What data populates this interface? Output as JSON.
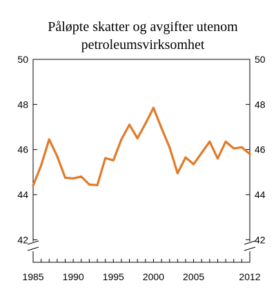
{
  "chart_data": {
    "type": "line",
    "title": "Påløpte skatter og avgifter utenom",
    "subtitle": "petroleumsvirksomhet",
    "xlabel": "",
    "ylabel": "",
    "xlim": [
      1985,
      2012
    ],
    "ylim": [
      41,
      50
    ],
    "y_ticks": [
      42,
      44,
      46,
      48,
      50
    ],
    "x_tick_labels": [
      "1985",
      "1990",
      "1995",
      "2000",
      "2005",
      "2012"
    ],
    "x_tick_values": [
      1985,
      1990,
      1995,
      2000,
      2005,
      2012
    ],
    "axis_break": true,
    "grid": false,
    "line_color": "#e07b2a",
    "series": [
      {
        "x": [
          1985,
          1986,
          1987,
          1988,
          1989,
          1990,
          1991,
          1992,
          1993,
          1994,
          1995,
          1996,
          1997,
          1998,
          1999,
          2000,
          2001,
          2002,
          2003,
          2004,
          2005,
          2006,
          2007,
          2008,
          2009,
          2010,
          2011,
          2012
        ],
        "values": [
          44.4,
          45.3,
          46.45,
          45.7,
          44.75,
          44.72,
          44.8,
          44.45,
          44.42,
          45.62,
          45.52,
          46.45,
          47.1,
          46.5,
          47.15,
          47.85,
          46.95,
          46.1,
          44.95,
          45.65,
          45.35,
          45.85,
          46.35,
          45.6,
          46.35,
          46.05,
          46.1,
          45.8
        ]
      }
    ]
  }
}
